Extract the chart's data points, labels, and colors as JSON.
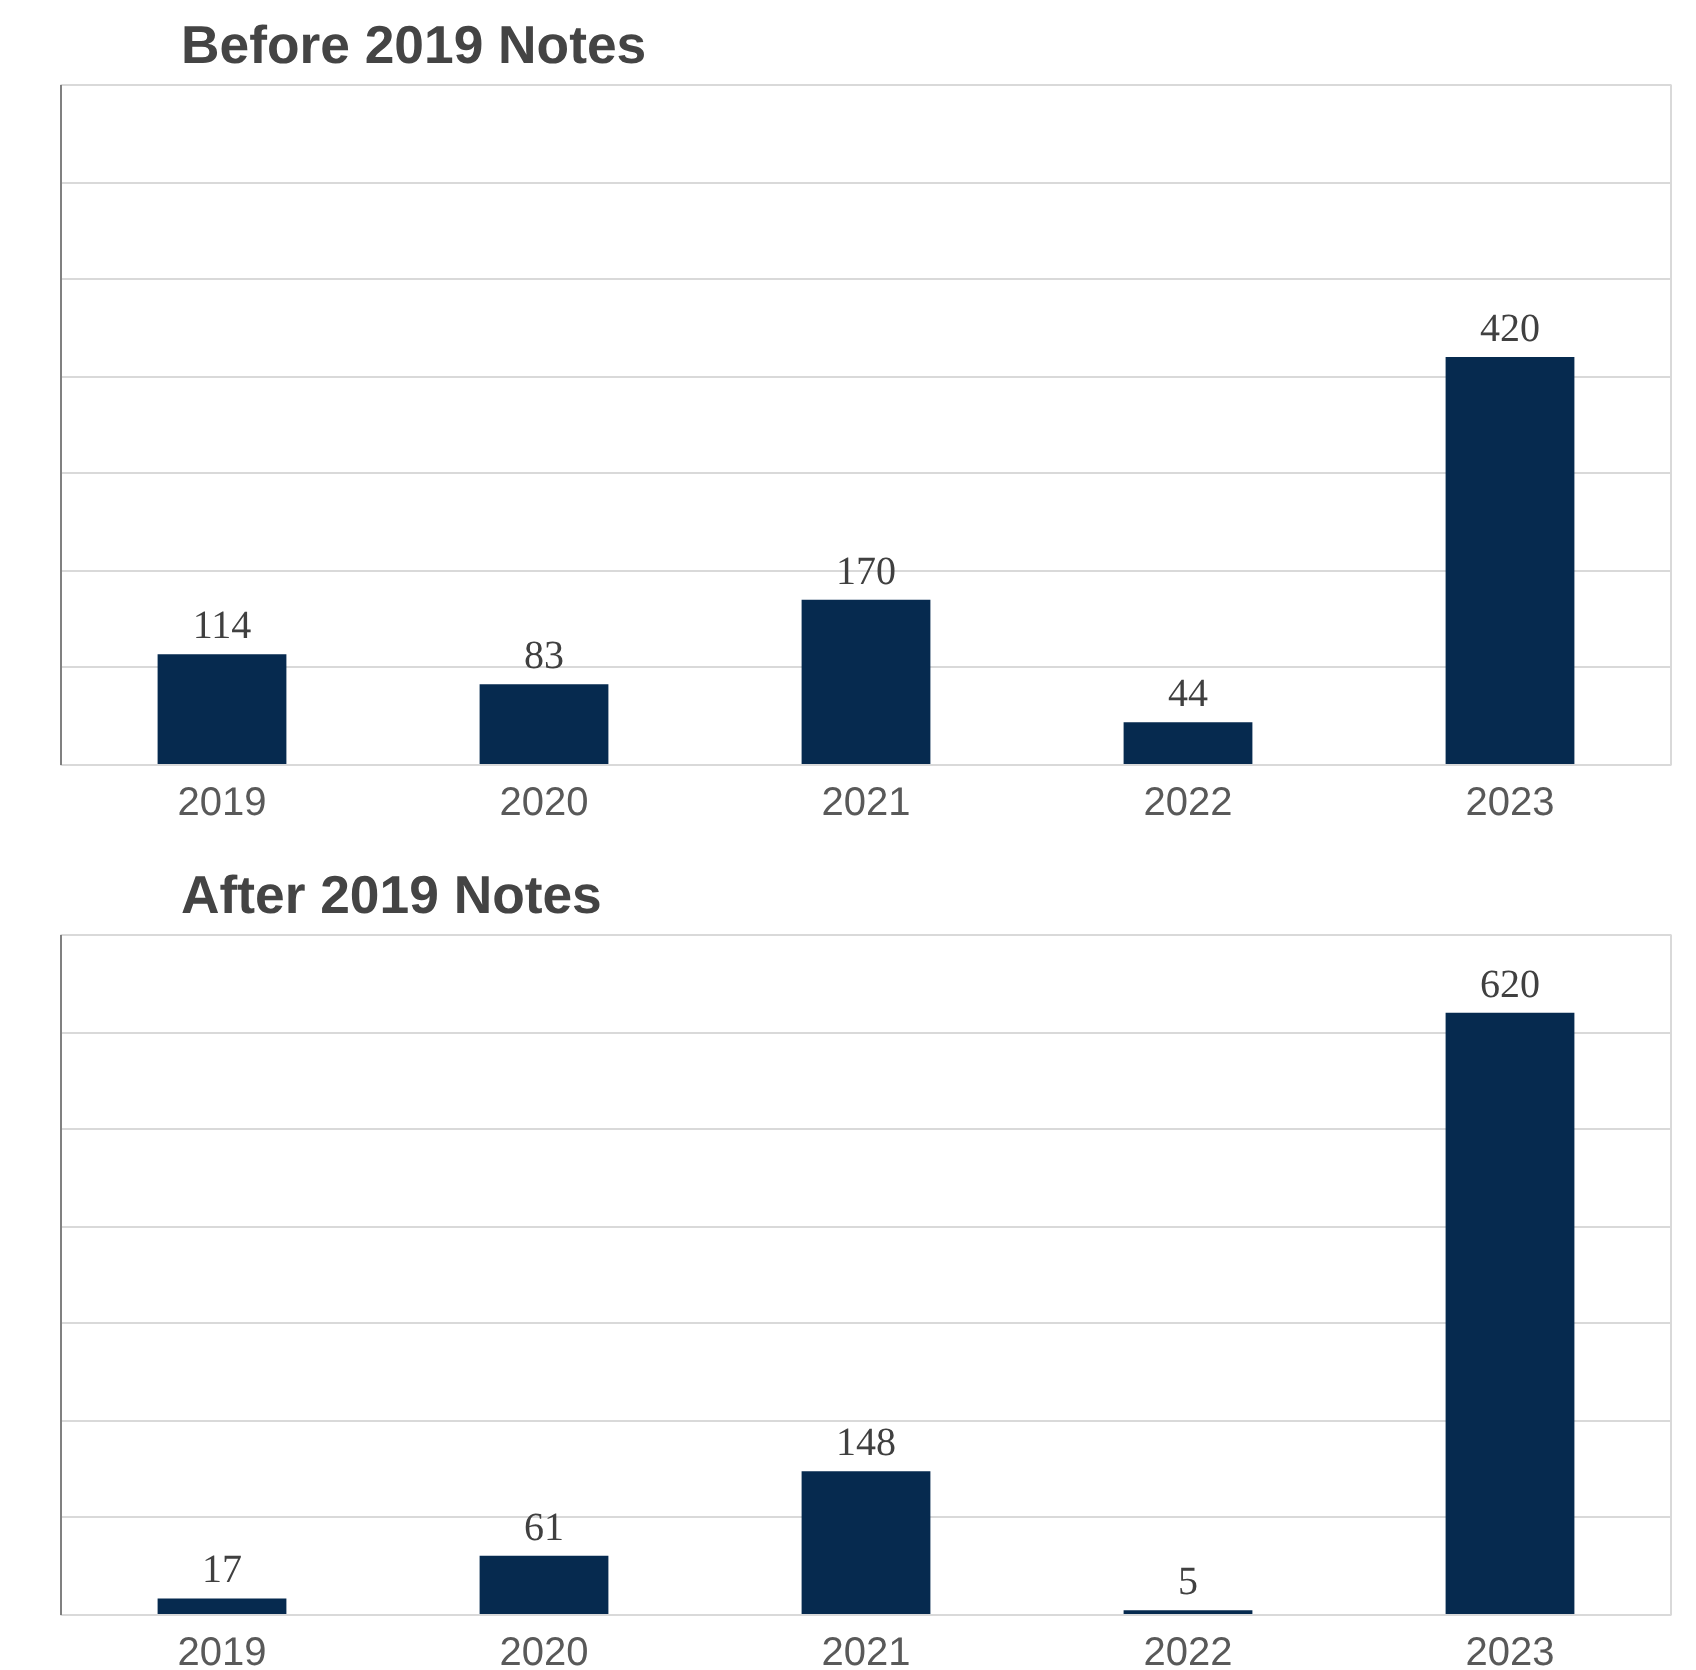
{
  "chart_data": [
    {
      "type": "bar",
      "title": "Before 2019 Notes",
      "categories": [
        "2019",
        "2020",
        "2021",
        "2022",
        "2023"
      ],
      "values": [
        114,
        83,
        170,
        44,
        420
      ],
      "color": "#062a4f",
      "data_labels": true,
      "ylim": [
        0,
        700
      ],
      "yticks": [
        {
          "value": 0,
          "label": null
        },
        {
          "value": 100,
          "label": null
        },
        {
          "value": 200,
          "label": null
        },
        {
          "value": 300,
          "label": null
        },
        {
          "value": 400,
          "label": null
        },
        {
          "value": 500,
          "label": null
        },
        {
          "value": 600,
          "label": null
        },
        {
          "value": 700,
          "label": null
        }
      ],
      "grid": "y",
      "tick_labels": "x"
    },
    {
      "type": "bar",
      "title": "After 2019 Notes",
      "categories": [
        "2019",
        "2020",
        "2021",
        "2022",
        "2023"
      ],
      "values": [
        17,
        61,
        148,
        5,
        620
      ],
      "color": "#062a4f",
      "data_labels": true,
      "ylim": [
        0,
        700
      ],
      "yticks": [
        {
          "value": 0,
          "label": null
        },
        {
          "value": 100,
          "label": null
        },
        {
          "value": 200,
          "label": null
        },
        {
          "value": 300,
          "label": null
        },
        {
          "value": 400,
          "label": null
        },
        {
          "value": 500,
          "label": null
        },
        {
          "value": 600,
          "label": null
        },
        {
          "value": 700,
          "label": null
        }
      ],
      "grid": "y",
      "tick_labels": "x"
    }
  ]
}
